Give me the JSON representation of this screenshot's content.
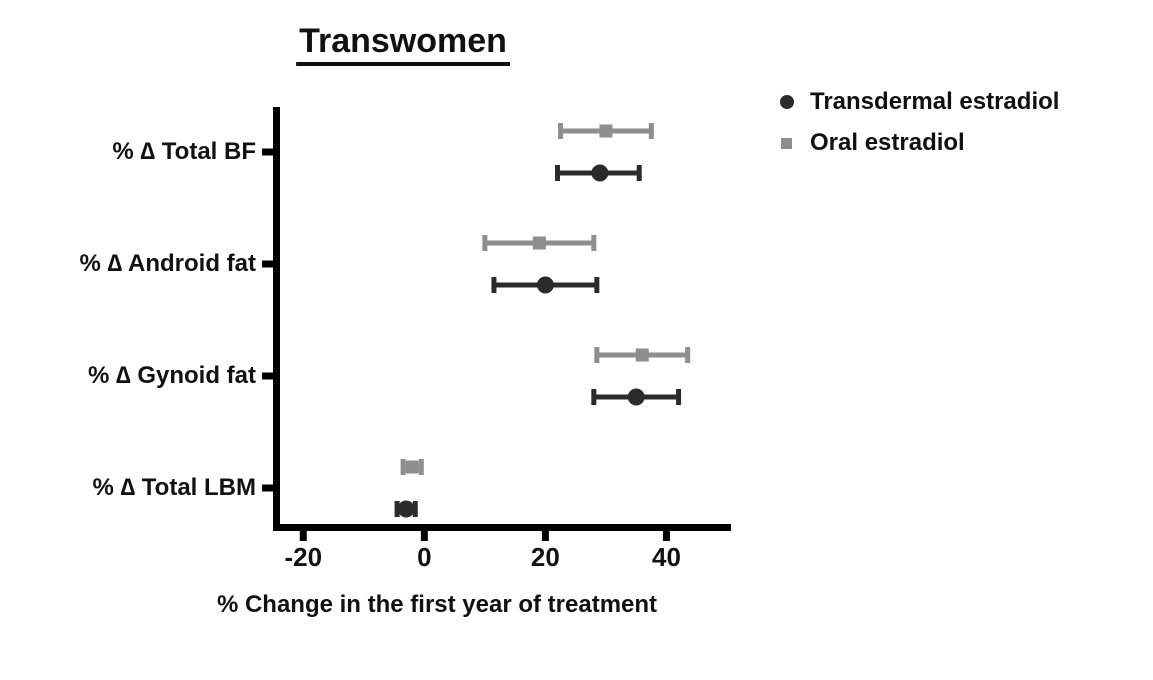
{
  "chart_data": {
    "type": "scatter",
    "subtype": "horizontal point estimates with error bars (forest-style plot)",
    "title": "Transwomen",
    "xlabel": "% Change in the first year of treatment",
    "ylabel": "",
    "xlim": [
      -25,
      50
    ],
    "xticks": [
      -20,
      0,
      20,
      40
    ],
    "grid": false,
    "legend_position": "top-right",
    "axis_color": "#000000",
    "categories": [
      "% ∆ Total BF",
      "% ∆ Android fat",
      "% ∆ Gynoid fat",
      "% ∆ Total LBM"
    ],
    "series": [
      {
        "name": "Transdermal estradiol",
        "marker": "circle",
        "color": "#2b2b2b",
        "row_offset": 21,
        "values": [
          29,
          20,
          35,
          -3
        ],
        "ci_low": [
          22,
          11.5,
          28,
          -4.5
        ],
        "ci_high": [
          35.5,
          28.5,
          42,
          -1.5
        ]
      },
      {
        "name": "Oral estradiol",
        "marker": "square",
        "color": "#8e8e8e",
        "row_offset": -21,
        "values": [
          30,
          19,
          36,
          -2
        ],
        "ci_low": [
          22.5,
          10,
          28.5,
          -3.5
        ],
        "ci_high": [
          37.5,
          28,
          43.5,
          -0.5
        ]
      }
    ]
  }
}
